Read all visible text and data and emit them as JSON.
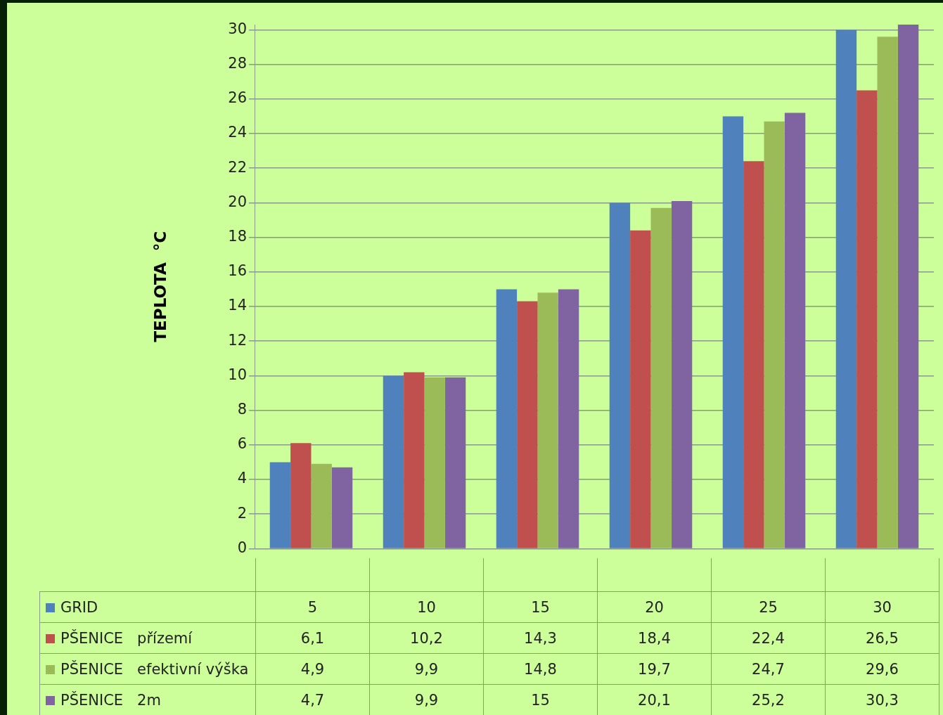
{
  "chart_data": {
    "type": "bar",
    "ylabel": "TEPLOTA  °C",
    "categories": [
      null,
      null,
      null,
      null,
      null,
      null
    ],
    "series": [
      {
        "name": "GRID",
        "color": "#4f81bd",
        "values": [
          5,
          10,
          15,
          20,
          25,
          30
        ],
        "value_labels": [
          "5",
          "10",
          "15",
          "20",
          "25",
          "30"
        ]
      },
      {
        "name": "PŠENICE   přízemí",
        "color": "#c0504d",
        "values": [
          6.1,
          10.2,
          14.3,
          18.4,
          22.4,
          26.5
        ],
        "value_labels": [
          "6,1",
          "10,2",
          "14,3",
          "18,4",
          "22,4",
          "26,5"
        ]
      },
      {
        "name": "PŠENICE   efektivní výška",
        "color": "#9bbb59",
        "values": [
          4.9,
          9.9,
          14.8,
          19.7,
          24.7,
          29.6
        ],
        "value_labels": [
          "4,9",
          "9,9",
          "14,8",
          "19,7",
          "24,7",
          "29,6"
        ]
      },
      {
        "name": "PŠENICE   2m",
        "color": "#8064a2",
        "values": [
          4.7,
          9.9,
          15,
          20.1,
          25.2,
          30.3
        ],
        "value_labels": [
          "4,7",
          "9,9",
          "15",
          "20,1",
          "25,2",
          "30,3"
        ]
      }
    ],
    "ylim": [
      0,
      30.3
    ],
    "yticks": [
      0,
      2,
      4,
      6,
      8,
      10,
      12,
      14,
      16,
      18,
      20,
      22,
      24,
      26,
      28,
      30
    ],
    "grid": "y",
    "legend": "bottom"
  }
}
